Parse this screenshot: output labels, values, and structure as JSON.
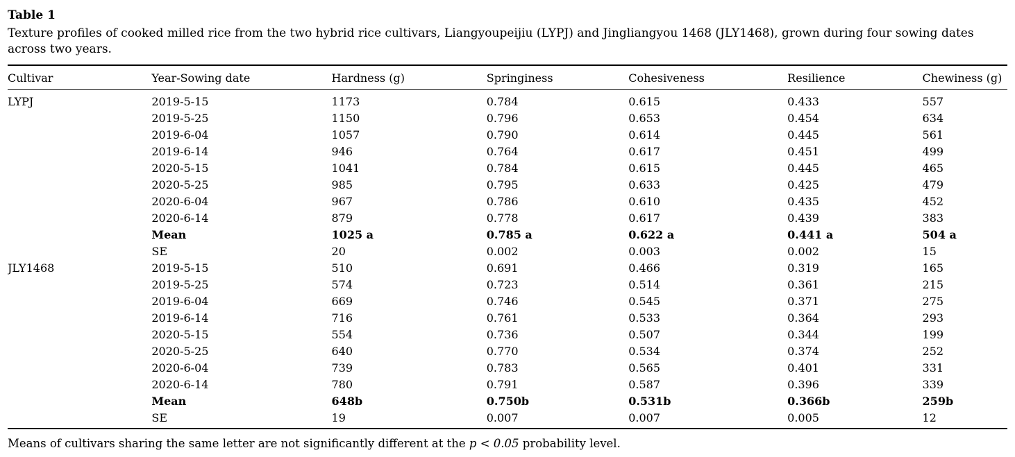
{
  "table": {
    "label": "Table 1",
    "caption": "Texture profiles of cooked milled rice from the two hybrid rice cultivars, Liangyoupeijiu (LYPJ) and Jingliangyou 1468 (JLY1468), grown during four sowing dates across two years.",
    "columns": [
      "Cultivar",
      "Year-Sowing date",
      "Hardness (g)",
      "Springiness",
      "Cohesiveness",
      "Resilience",
      "Chewiness (g)"
    ],
    "rows": [
      {
        "cultivar": "LYPJ",
        "label": "2019-5-15",
        "values": [
          "1173",
          "0.784",
          "0.615",
          "0.433",
          "557"
        ],
        "bold": false
      },
      {
        "cultivar": "",
        "label": "2019-5-25",
        "values": [
          "1150",
          "0.796",
          "0.653",
          "0.454",
          "634"
        ],
        "bold": false
      },
      {
        "cultivar": "",
        "label": "2019-6-04",
        "values": [
          "1057",
          "0.790",
          "0.614",
          "0.445",
          "561"
        ],
        "bold": false
      },
      {
        "cultivar": "",
        "label": "2019-6-14",
        "values": [
          "946",
          "0.764",
          "0.617",
          "0.451",
          "499"
        ],
        "bold": false
      },
      {
        "cultivar": "",
        "label": "2020-5-15",
        "values": [
          "1041",
          "0.784",
          "0.615",
          "0.445",
          "465"
        ],
        "bold": false
      },
      {
        "cultivar": "",
        "label": "2020-5-25",
        "values": [
          "985",
          "0.795",
          "0.633",
          "0.425",
          "479"
        ],
        "bold": false
      },
      {
        "cultivar": "",
        "label": "2020-6-04",
        "values": [
          "967",
          "0.786",
          "0.610",
          "0.435",
          "452"
        ],
        "bold": false
      },
      {
        "cultivar": "",
        "label": "2020-6-14",
        "values": [
          "879",
          "0.778",
          "0.617",
          "0.439",
          "383"
        ],
        "bold": false
      },
      {
        "cultivar": "",
        "label": "Mean",
        "values": [
          "1025 a",
          "0.785 a",
          "0.622 a",
          "0.441 a",
          "504 a"
        ],
        "bold": true
      },
      {
        "cultivar": "",
        "label": "SE",
        "values": [
          "20",
          "0.002",
          "0.003",
          "0.002",
          "15"
        ],
        "bold": false
      },
      {
        "cultivar": "JLY1468",
        "label": "2019-5-15",
        "values": [
          "510",
          "0.691",
          "0.466",
          "0.319",
          "165"
        ],
        "bold": false
      },
      {
        "cultivar": "",
        "label": "2019-5-25",
        "values": [
          "574",
          "0.723",
          "0.514",
          "0.361",
          "215"
        ],
        "bold": false
      },
      {
        "cultivar": "",
        "label": "2019-6-04",
        "values": [
          "669",
          "0.746",
          "0.545",
          "0.371",
          "275"
        ],
        "bold": false
      },
      {
        "cultivar": "",
        "label": "2019-6-14",
        "values": [
          "716",
          "0.761",
          "0.533",
          "0.364",
          "293"
        ],
        "bold": false
      },
      {
        "cultivar": "",
        "label": "2020-5-15",
        "values": [
          "554",
          "0.736",
          "0.507",
          "0.344",
          "199"
        ],
        "bold": false
      },
      {
        "cultivar": "",
        "label": "2020-5-25",
        "values": [
          "640",
          "0.770",
          "0.534",
          "0.374",
          "252"
        ],
        "bold": false
      },
      {
        "cultivar": "",
        "label": "2020-6-04",
        "values": [
          "739",
          "0.783",
          "0.565",
          "0.401",
          "331"
        ],
        "bold": false
      },
      {
        "cultivar": "",
        "label": "2020-6-14",
        "values": [
          "780",
          "0.791",
          "0.587",
          "0.396",
          "339"
        ],
        "bold": false
      },
      {
        "cultivar": "",
        "label": "Mean",
        "values": [
          "648b",
          "0.750b",
          "0.531b",
          "0.366b",
          "259b"
        ],
        "bold": true
      },
      {
        "cultivar": "",
        "label": "SE",
        "values": [
          "19",
          "0.007",
          "0.007",
          "0.005",
          "12"
        ],
        "bold": false
      }
    ],
    "footnote_prefix": "Means of cultivars sharing the same letter are not significantly different at the ",
    "footnote_italic": "p < 0.05",
    "footnote_suffix": " probability level."
  }
}
